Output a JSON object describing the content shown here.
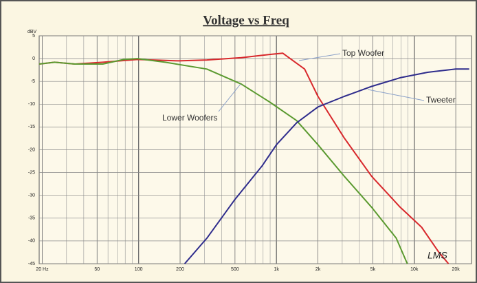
{
  "chart_data": {
    "type": "line",
    "title": "Voltage vs Freq",
    "y_label": "dBV",
    "signature": "LMS",
    "log_x": true,
    "grid": true,
    "minor_grid": true,
    "xlim": [
      19,
      26000
    ],
    "xticks": [
      {
        "value": 20,
        "label": "20 Hz"
      },
      50,
      100,
      200,
      500,
      {
        "value": 1000,
        "label": "1k"
      },
      {
        "value": 2000,
        "label": "2k"
      },
      {
        "value": 5000,
        "label": "5k"
      },
      {
        "value": 10000,
        "label": "10k"
      },
      {
        "value": 20000,
        "label": "20k"
      }
    ],
    "ylim": [
      -45,
      5
    ],
    "yticks": [
      5,
      0,
      -5,
      -10,
      -15,
      -20,
      -25,
      -30,
      -35,
      -40,
      -45
    ],
    "annotations": [
      "Top Woofer",
      "Tweeter",
      "Lower Woofers"
    ],
    "series": [
      {
        "name": "Top Woofer",
        "color": "#d8282c",
        "x": [
          19,
          24.6,
          34.5,
          55,
          98,
          196,
          313,
          557,
          890,
          1110,
          1600,
          2000,
          3100,
          4900,
          7900,
          11300,
          15000,
          17700
        ],
        "values": [
          -1.2,
          -0.8,
          -1.2,
          -0.8,
          -0.2,
          -0.5,
          -0.3,
          0.2,
          0.9,
          1.2,
          -2.3,
          -8.3,
          -17.4,
          -25.8,
          -32.6,
          -37,
          -42.4,
          -45
        ]
      },
      {
        "name": "Lower Woofers",
        "color": "#5b9a30",
        "x": [
          19,
          24.6,
          34.5,
          55,
          78,
          98,
          156,
          313,
          557,
          890,
          1400,
          2000,
          3100,
          4900,
          7400,
          8900
        ],
        "values": [
          -1.2,
          -0.8,
          -1.2,
          -1.2,
          -0.2,
          0,
          -0.8,
          -2.3,
          -5.6,
          -9.5,
          -13.6,
          -18.9,
          -25.8,
          -32.6,
          -39.4,
          -45
        ]
      },
      {
        "name": "Tweeter",
        "color": "#2e2c8c",
        "x": [
          216,
          313,
          497,
          788,
          1000,
          1400,
          2000,
          3100,
          4900,
          7900,
          12500,
          20000,
          25000
        ],
        "values": [
          -45,
          -39.4,
          -31,
          -23.5,
          -18.9,
          -14.1,
          -10.6,
          -8.3,
          -6.1,
          -4.2,
          -3,
          -2.3,
          -2.3
        ]
      }
    ]
  }
}
